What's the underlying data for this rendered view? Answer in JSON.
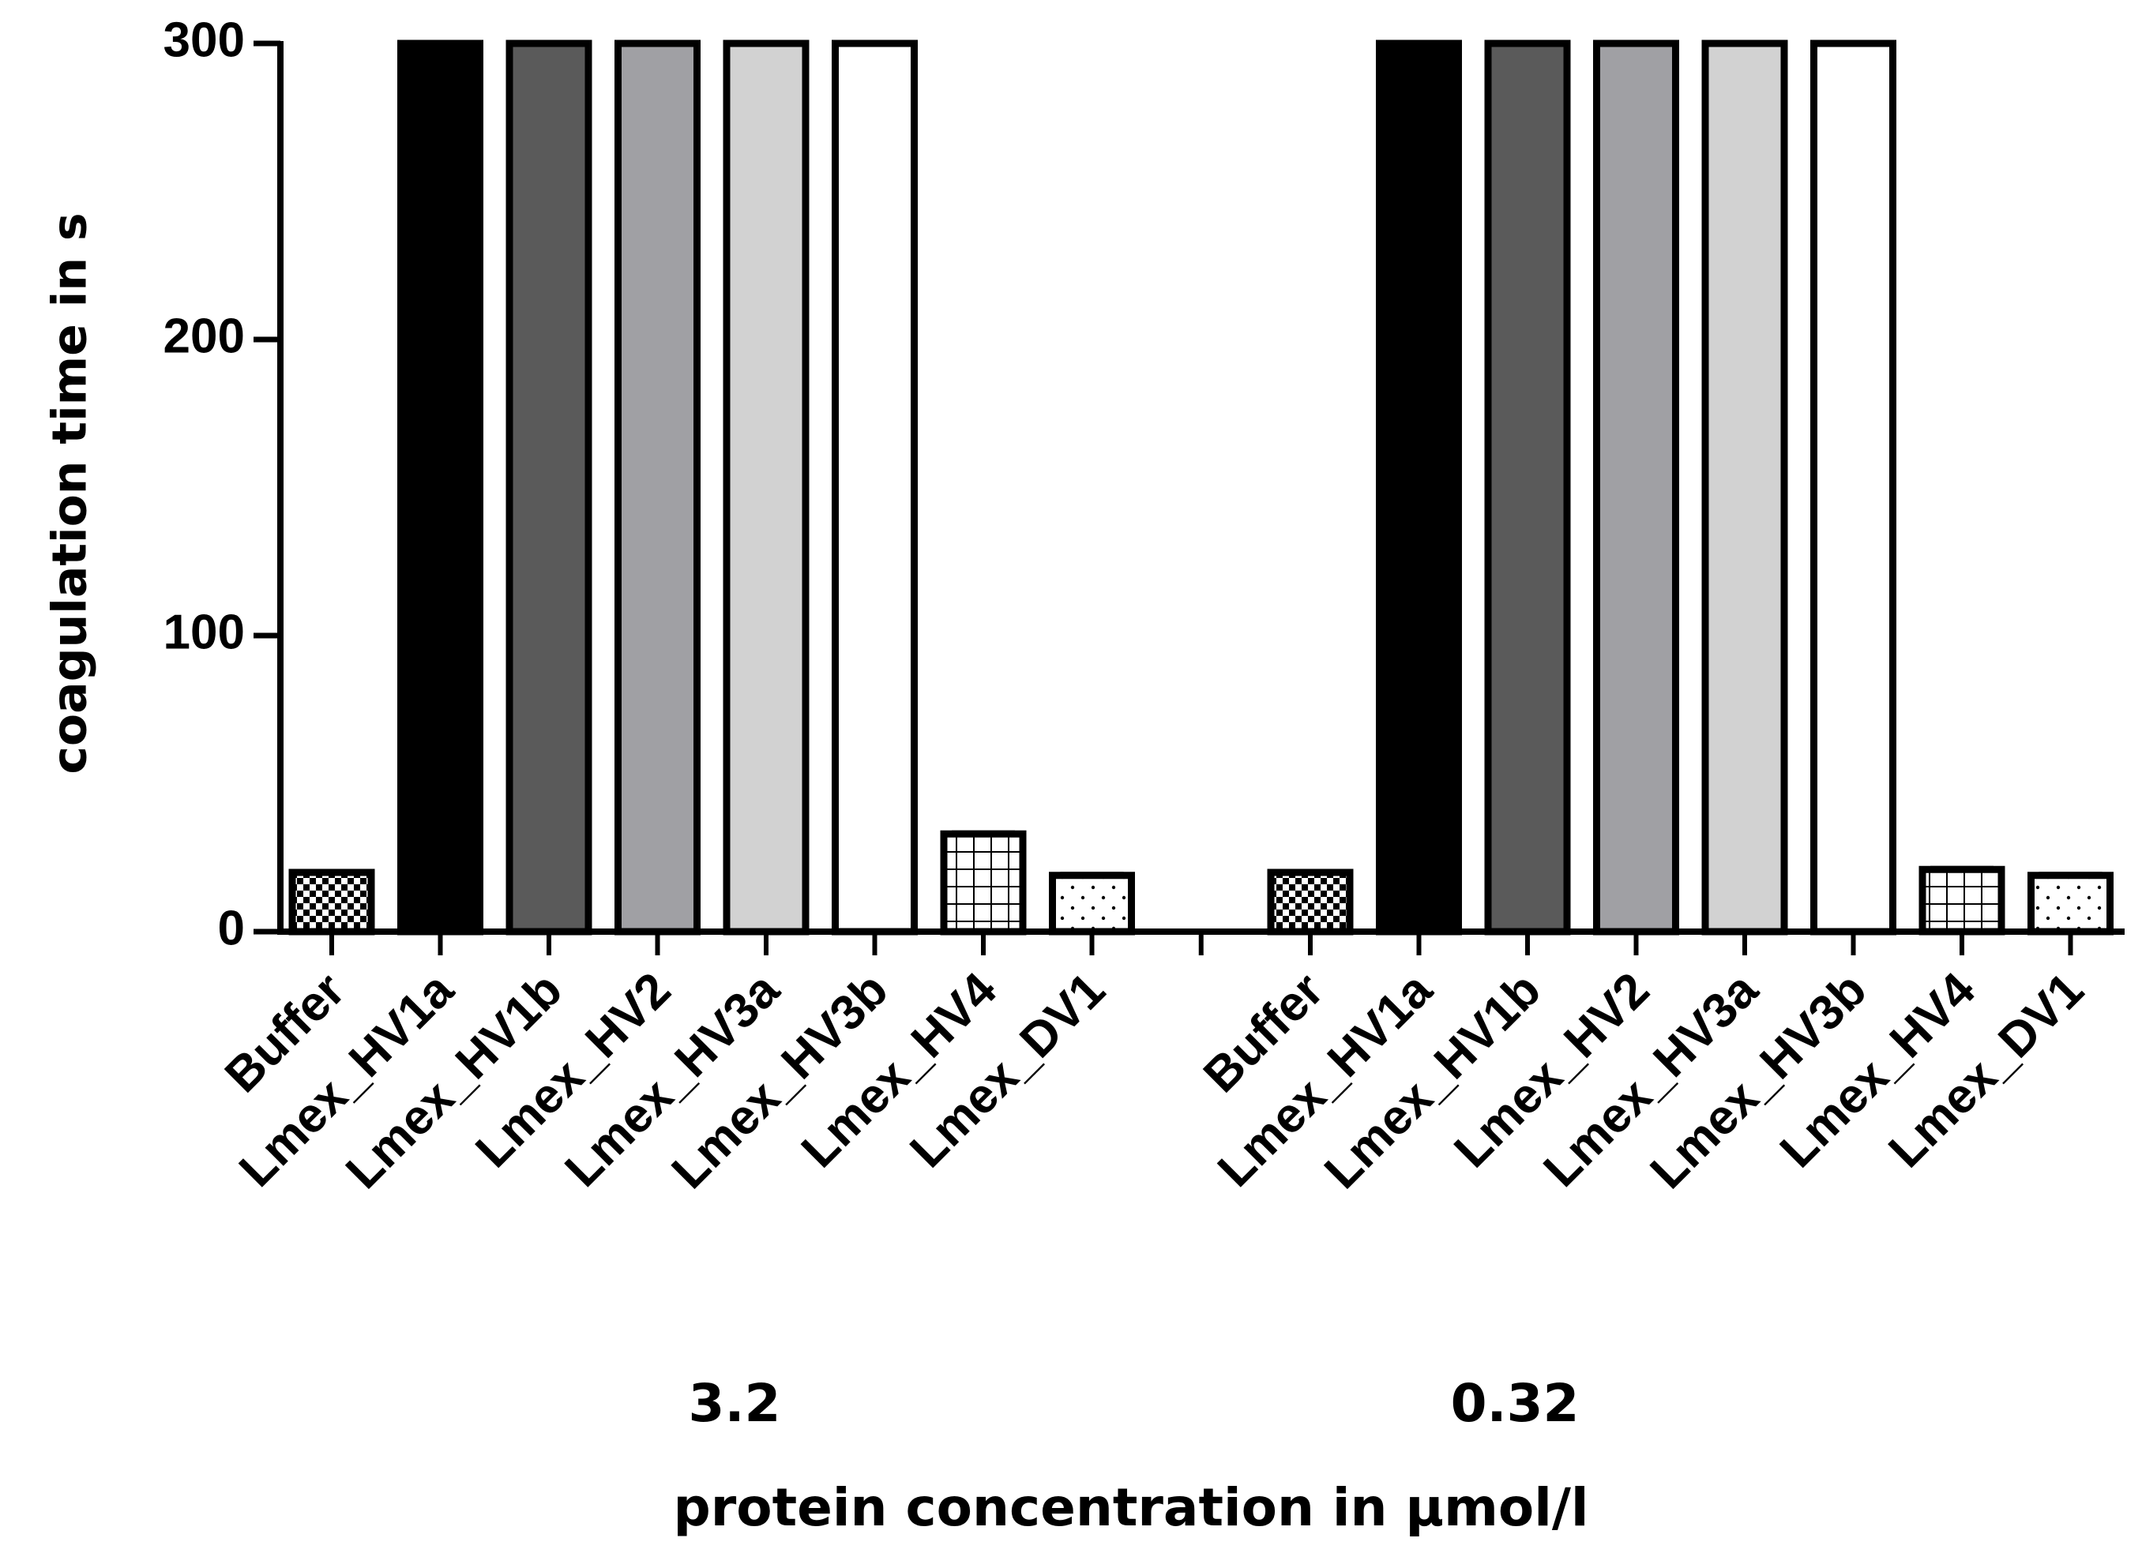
{
  "chart_data": {
    "type": "bar",
    "title": "",
    "ylabel": "coagulation time in s",
    "xlabel": "protein concentration in µmol/l",
    "ylim": [
      0,
      300
    ],
    "yticks": [
      "0",
      "100",
      "200",
      "300"
    ],
    "categories": [
      "Buffer",
      "Lmex_HV1a",
      "Lmex_HV1b",
      "Lmex_HV2",
      "Lmex_HV3a",
      "Lmex_HV3b",
      "Lmex_HV4",
      "Lmex_DV1"
    ],
    "groups": [
      {
        "label": "3.2",
        "values": [
          20,
          300,
          300,
          300,
          300,
          300,
          33,
          19
        ]
      },
      {
        "label": "0.32",
        "values": [
          20,
          300,
          300,
          300,
          300,
          300,
          21,
          19
        ]
      }
    ],
    "fills": [
      "pattern-checker",
      "#000000",
      "#5a5a5a",
      "#a0a0a4",
      "#d2d2d2",
      "#ffffff",
      "pattern-grid",
      "pattern-dots"
    ]
  }
}
